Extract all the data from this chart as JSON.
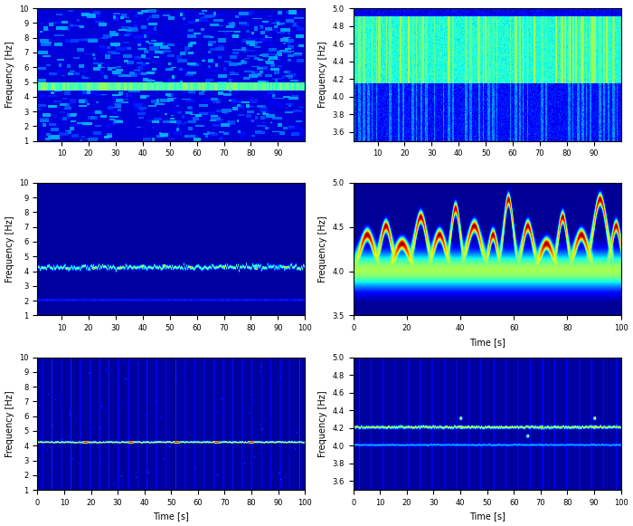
{
  "fig_width": 7.0,
  "fig_height": 5.81,
  "dpi": 100,
  "background_color": "#ffffff",
  "plots": [
    {
      "row": 0,
      "col": 0,
      "ylim": [
        1,
        10
      ],
      "xlim": [
        1,
        100
      ],
      "ylabel": "Frequency [Hz]",
      "xlabel": "",
      "yticks": [
        1,
        2,
        3,
        4,
        5,
        6,
        7,
        8,
        9,
        10
      ],
      "xticks": [
        10,
        20,
        30,
        40,
        50,
        60,
        70,
        80,
        90
      ]
    },
    {
      "row": 0,
      "col": 1,
      "ylim": [
        3.5,
        5.0
      ],
      "xlim": [
        1,
        100
      ],
      "ylabel": "Frequency [Hz]",
      "xlabel": "",
      "yticks": [
        3.6,
        3.8,
        4.0,
        4.2,
        4.4,
        4.6,
        4.8,
        5.0
      ],
      "xticks": [
        10,
        20,
        30,
        40,
        50,
        60,
        70,
        80,
        90
      ]
    },
    {
      "row": 1,
      "col": 0,
      "ylim": [
        1,
        10
      ],
      "xlim": [
        1,
        100
      ],
      "ylabel": "Frequency [Hz]",
      "xlabel": "",
      "yticks": [
        1,
        2,
        3,
        4,
        5,
        6,
        7,
        8,
        9,
        10
      ],
      "xticks": [
        10,
        20,
        30,
        40,
        50,
        60,
        70,
        80,
        90,
        100
      ]
    },
    {
      "row": 1,
      "col": 1,
      "ylim": [
        3.5,
        5.0
      ],
      "xlim": [
        0,
        100
      ],
      "ylabel": "Frequency [Hz]",
      "xlabel": "Time [s]",
      "yticks": [
        3.5,
        4.0,
        4.5,
        5.0
      ],
      "xticks": [
        0,
        20,
        40,
        60,
        80,
        100
      ]
    },
    {
      "row": 2,
      "col": 0,
      "ylim": [
        1,
        10
      ],
      "xlim": [
        0,
        100
      ],
      "ylabel": "Frequency [Hz]",
      "xlabel": "Time [s]",
      "yticks": [
        1,
        2,
        3,
        4,
        5,
        6,
        7,
        8,
        9,
        10
      ],
      "xticks": [
        0,
        10,
        20,
        30,
        40,
        50,
        60,
        70,
        80,
        90,
        100
      ]
    },
    {
      "row": 2,
      "col": 1,
      "ylim": [
        3.5,
        5.0
      ],
      "xlim": [
        0,
        100
      ],
      "ylabel": "Frequency [Hz]",
      "xlabel": "Time [s]",
      "yticks": [
        3.6,
        3.8,
        4.0,
        4.2,
        4.4,
        4.6,
        4.8,
        5.0
      ],
      "xticks": [
        0,
        10,
        20,
        30,
        40,
        50,
        60,
        70,
        80,
        90,
        100
      ]
    }
  ]
}
